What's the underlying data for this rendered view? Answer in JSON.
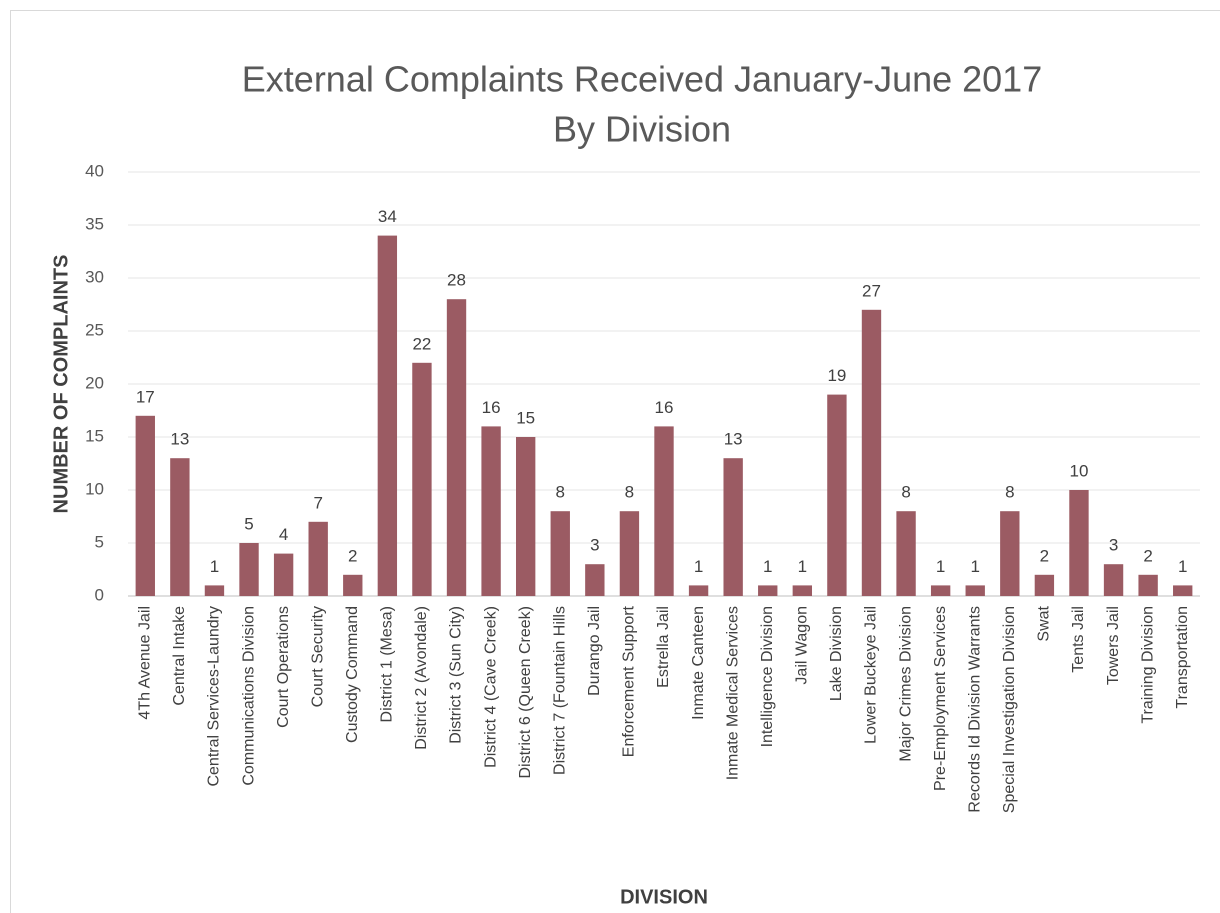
{
  "chart_data": {
    "type": "bar",
    "title": "External Complaints Received January-June 2017",
    "subtitle": "By Division",
    "x_label": "DIVISION",
    "y_label": "NUMBER OF COMPLAINTS",
    "categories": [
      "4Th Avenue Jail",
      "Central Intake",
      "Central Services-Laundry",
      "Communications Division",
      "Court Operations",
      "Court Security",
      "Custody Command",
      "District 1 (Mesa)",
      "District 2 (Avondale)",
      "District 3 (Sun City)",
      "District 4 (Cave Creek)",
      "District 6 (Queen Creek)",
      "District 7 (Fountain Hills",
      "Durango Jail",
      "Enforcement Support",
      "Estrella Jail",
      "Inmate Canteen",
      "Inmate Medical Services",
      "Intelligence Division",
      "Jail Wagon",
      "Lake Division",
      "Lower Buckeye Jail",
      "Major Crimes Division",
      "Pre-Employment Services",
      "Records Id Division Warrants",
      "Special Investigation Division",
      "Swat",
      "Tents Jail",
      "Towers Jail",
      "Training Division",
      "Transportation"
    ],
    "values": [
      17,
      13,
      1,
      5,
      4,
      7,
      2,
      34,
      22,
      28,
      16,
      15,
      8,
      3,
      8,
      16,
      1,
      13,
      1,
      1,
      19,
      27,
      8,
      1,
      1,
      8,
      2,
      10,
      3,
      2,
      1
    ],
    "color": "#9b5b63",
    "ylim": [
      0,
      40
    ],
    "yticks": [
      0,
      5,
      10,
      15,
      20,
      25,
      30,
      35,
      40
    ],
    "grid": true
  }
}
